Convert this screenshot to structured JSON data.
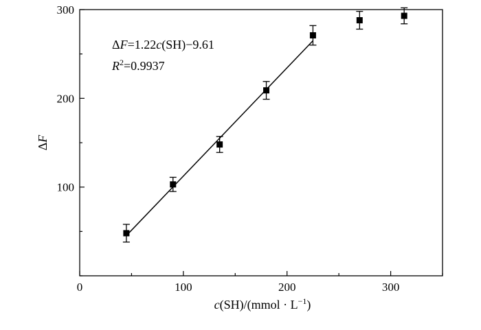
{
  "chart_data": {
    "type": "scatter",
    "xlabel": "c(SH)/(mmol · L⁻¹)",
    "xlabel_parts": {
      "var": "c",
      "unit": "(SH)/(mmol · L",
      "sup": "−1",
      "close": ")"
    },
    "ylabel": "ΔF",
    "ylabel_parts": {
      "delta": "Δ",
      "var": "F"
    },
    "xlim": [
      0,
      350
    ],
    "ylim": [
      0,
      300
    ],
    "x_ticks": [
      0,
      100,
      200,
      300
    ],
    "y_ticks": [
      100,
      200,
      300
    ],
    "points": [
      {
        "x": 45,
        "y": 48,
        "err": 10
      },
      {
        "x": 90,
        "y": 103,
        "err": 8
      },
      {
        "x": 135,
        "y": 148,
        "err": 9
      },
      {
        "x": 180,
        "y": 209,
        "err": 10
      },
      {
        "x": 225,
        "y": 271,
        "err": 11
      },
      {
        "x": 270,
        "y": 288,
        "err": 10
      },
      {
        "x": 313,
        "y": 293,
        "err": 9
      }
    ],
    "fit_line": {
      "slope": 1.22,
      "intercept": -9.61,
      "x_range": [
        45,
        225
      ]
    },
    "annotations": {
      "equation": "ΔF=1.22c(SH)−9.61",
      "equation_parts": {
        "d": "Δ",
        "f": "F",
        "mid": "=1.22",
        "c": "c",
        "rest": "(SH)−9.61"
      },
      "r2": "R²=0.9937",
      "r2_parts": {
        "r": "R",
        "sup": "2",
        "rest": "=0.9937"
      }
    },
    "grid": false
  }
}
